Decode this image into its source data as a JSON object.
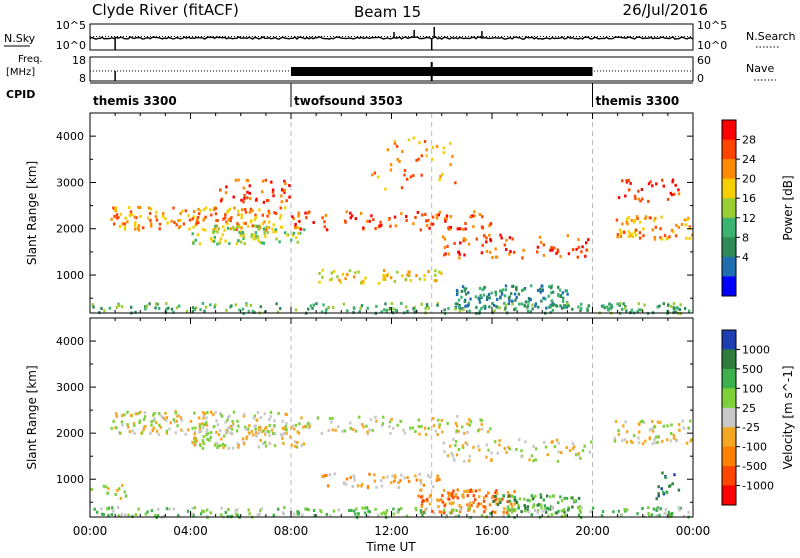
{
  "header": {
    "station": "Clyde River (fitACF)",
    "beam": "Beam 15",
    "date": "26/Jul/2016"
  },
  "nsky_panel": {
    "left_label": "N.Sky",
    "left_ticks": [
      "10^5",
      "10^0"
    ],
    "right_ticks": [
      "10^5",
      "10^0"
    ],
    "right_label": "N.Search"
  },
  "freq_panel": {
    "left_label_1": "Freq.",
    "left_label_2": "[MHz]",
    "left_ticks": [
      "18",
      "8"
    ],
    "right_ticks": [
      "60",
      "0"
    ],
    "right_label": "Nave"
  },
  "cpid_panel": {
    "label": "CPID",
    "segments": [
      {
        "name": "themis 3300",
        "start_hour": 0,
        "end_hour": 8
      },
      {
        "name": "twofsound 3503",
        "start_hour": 8,
        "end_hour": 20
      },
      {
        "name": "themis 3300",
        "start_hour": 20,
        "end_hour": 24
      }
    ]
  },
  "chart_data": [
    {
      "type": "heatmap",
      "name": "power",
      "ylabel": "Slant Range [km]",
      "xlim_hours": [
        0,
        24
      ],
      "ylim_km": [
        180,
        4500
      ],
      "yticks": [
        "1000",
        "2000",
        "3000",
        "4000"
      ],
      "colorbar_label": "Power [dB]",
      "colorbar_ticks": [
        "28",
        "24",
        "20",
        "16",
        "12",
        "8",
        "4"
      ],
      "colorbar_colors": [
        "#ff0000",
        "#ff4500",
        "#ff8c00",
        "#f5d000",
        "#9acd32",
        "#3cb371",
        "#2e8b57",
        "#1f6fb0",
        "#0000ff"
      ],
      "regions": [
        {
          "t0": 0.8,
          "t1": 7.8,
          "r0": 2000,
          "r1": 2500,
          "density": 0.55,
          "level": 2
        },
        {
          "t0": 4.0,
          "t1": 8.5,
          "r0": 1700,
          "r1": 2100,
          "density": 0.6,
          "level": 4
        },
        {
          "t0": 5.0,
          "t1": 8.0,
          "r0": 2600,
          "r1": 3100,
          "density": 0.35,
          "level": 1
        },
        {
          "t0": 8.0,
          "t1": 16.0,
          "r0": 2000,
          "r1": 2400,
          "density": 0.35,
          "level": 1
        },
        {
          "t0": 14.0,
          "t1": 20.0,
          "r0": 1400,
          "r1": 1900,
          "density": 0.3,
          "level": 1
        },
        {
          "t0": 9.0,
          "t1": 14.0,
          "r0": 850,
          "r1": 1150,
          "density": 0.45,
          "level": 3
        },
        {
          "t0": 14.5,
          "t1": 19.0,
          "r0": 300,
          "r1": 800,
          "density": 0.75,
          "level": 6
        },
        {
          "t0": 0.0,
          "t1": 24.0,
          "r0": 200,
          "r1": 420,
          "density": 0.5,
          "level": 5
        },
        {
          "t0": 20.8,
          "t1": 24.0,
          "r0": 1800,
          "r1": 2300,
          "density": 0.5,
          "level": 2
        },
        {
          "t0": 21.0,
          "t1": 23.5,
          "r0": 2600,
          "r1": 3100,
          "density": 0.3,
          "level": 1
        },
        {
          "t0": 11.0,
          "t1": 14.5,
          "r0": 2800,
          "r1": 4000,
          "density": 0.12,
          "level": 2
        }
      ]
    },
    {
      "type": "heatmap",
      "name": "velocity",
      "ylabel": "Slant Range [km]",
      "xlabel": "Time UT",
      "xticks": [
        "00:00",
        "04:00",
        "08:00",
        "12:00",
        "16:00",
        "20:00",
        "00:00"
      ],
      "xlim_hours": [
        0,
        24
      ],
      "ylim_km": [
        180,
        4500
      ],
      "yticks": [
        "1000",
        "2000",
        "3000",
        "4000"
      ],
      "colorbar_label": "Velocity [m s^-1]",
      "colorbar_ticks": [
        "1000",
        "500",
        "100",
        "25",
        "-25",
        "-100",
        "-500",
        "-1000"
      ],
      "colorbar_colors": [
        "#1f3fb0",
        "#2e7d3e",
        "#3cb04a",
        "#7ed13a",
        "#c8c8c8",
        "#f5a623",
        "#ff7f00",
        "#ff4500",
        "#ff0000"
      ],
      "regions": [
        {
          "t0": 0.8,
          "t1": 7.8,
          "r0": 2000,
          "r1": 2500,
          "density": 0.55,
          "level": 4
        },
        {
          "t0": 4.0,
          "t1": 8.5,
          "r0": 1700,
          "r1": 2200,
          "density": 0.6,
          "level": 4
        },
        {
          "t0": 8.0,
          "t1": 16.0,
          "r0": 2000,
          "r1": 2400,
          "density": 0.35,
          "level": 4
        },
        {
          "t0": 14.0,
          "t1": 20.0,
          "r0": 1400,
          "r1": 1900,
          "density": 0.3,
          "level": 4
        },
        {
          "t0": 9.0,
          "t1": 14.0,
          "r0": 850,
          "r1": 1150,
          "density": 0.45,
          "level": 5
        },
        {
          "t0": 13.0,
          "t1": 17.0,
          "r0": 300,
          "r1": 800,
          "density": 0.75,
          "level": 6
        },
        {
          "t0": 16.0,
          "t1": 19.5,
          "r0": 300,
          "r1": 700,
          "density": 0.7,
          "level": 2
        },
        {
          "t0": 0.0,
          "t1": 24.0,
          "r0": 200,
          "r1": 420,
          "density": 0.5,
          "level": 3
        },
        {
          "t0": 20.8,
          "t1": 24.0,
          "r0": 1800,
          "r1": 2300,
          "density": 0.5,
          "level": 4
        },
        {
          "t0": 22.5,
          "t1": 23.5,
          "r0": 600,
          "r1": 1200,
          "density": 0.35,
          "level": 1
        },
        {
          "t0": 0.0,
          "t1": 1.5,
          "r0": 600,
          "r1": 900,
          "density": 0.4,
          "level": 4
        }
      ]
    }
  ]
}
